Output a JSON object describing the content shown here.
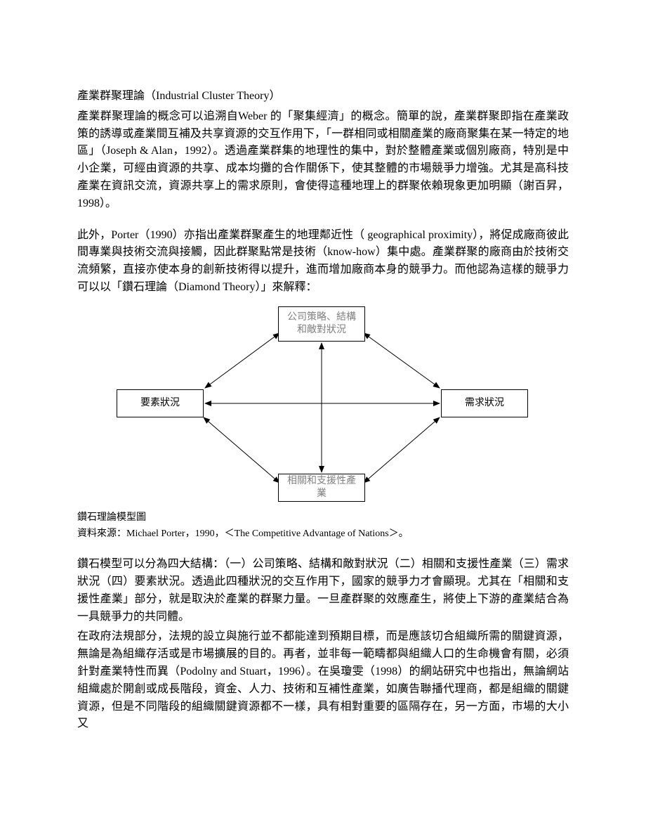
{
  "title": "產業群聚理論（Industrial Cluster Theory）",
  "para1": "產業群聚理論的概念可以追溯自Weber 的「聚集經濟」的概念。簡單的說，產業群聚即指在產業政策的誘導或產業間互補及共享資源的交互作用下，「一群相同或相關產業的廠商聚集在某一特定的地區」（Joseph & Alan，1992）。透過產業群集的地理性的集中，對於整體產業或個別廠商，特別是中小企業，可經由資源的共享、成本均攤的合作關係下，使其整體的市場競爭力增強。尤其是高科技產業在資訊交流，資源共享上的需求原則，會使得這種地理上的群聚依賴現象更加明顯（謝百昇，1998）。",
  "para2": "此外，Porter（1990）亦指出產業群聚產生的地理鄰近性（ geographical proximity），將促成廠商彼此間專業與技術交流與接觸，因此群聚點常是技術（know-how）集中處。產業群聚的廠商由於技術交流頻繁，直接亦使本身的創新技術得以提升，進而增加廠商本身的競爭力。而他認為這樣的競爭力可以以「鑽石理論（Diamond Theory）」來解釋：",
  "diagram": {
    "nodes": {
      "top": "公司策略、結構\n和敵對狀況",
      "left": "要素狀況",
      "right": "需求狀況",
      "bottom": "相關和支援性產業"
    },
    "caption_line1": "鑽石理論模型圖",
    "caption_line2": "資料來源：Michael Porter，1990，＜The Competitive Advantage of Nations＞。",
    "arrow_color": "#000000",
    "background_color": "#ffffff"
  },
  "para3": "鑽石模型可以分為四大結構：（一）公司策略、結構和敵對狀況（二）相關和支援性產業（三）需求狀況（四）要素狀況。透過此四種狀況的交互作用下，國家的競爭力才會顯現。尤其在「相關和支援性產業」部分，就是取決於產業的群聚力量。一旦產群聚的效應產生，將使上下游的產業結合為一具競爭力的共同體。",
  "para4": "在政府法規部分，法規的設立與施行並不都能達到預期目標，而是應該切合組織所需的關鍵資源，無論是為組織存活或是市場擴展的目的。再者，並非每一範疇都與組織人口的生命機會有關，必須針對產業特性而異（Podolny and Stuart，1996）。在吳瓊雯（1998）的網站研究中也指出，無論網站組織處於開創或成長階段，資金、人力、技術和互補性產業，如廣告聯播代理商，都是組織的關鍵資源，但是不同階段的組織關鍵資源都不一樣，具有相對重要的區隔存在，另一方面，市場的大小又"
}
